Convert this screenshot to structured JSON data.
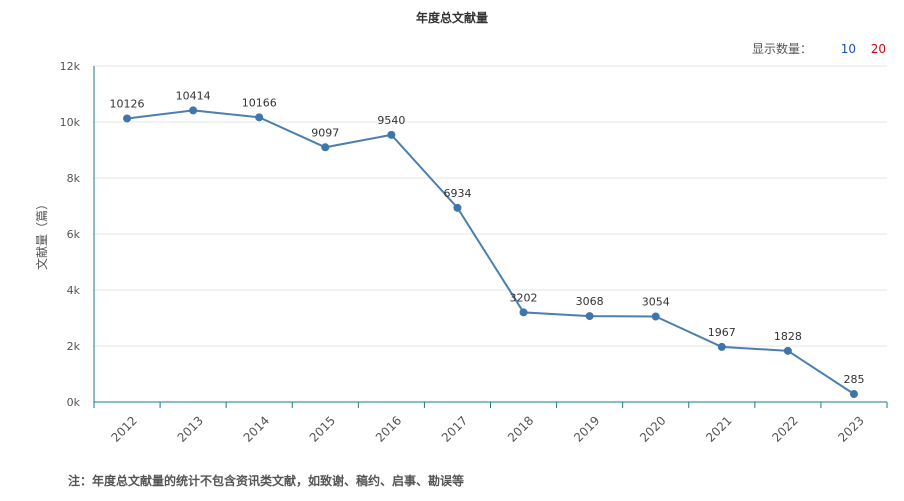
{
  "title": "年度总文献量",
  "count_selector": {
    "label": "显示数量：",
    "options": [
      "10",
      "20"
    ],
    "option_colors": [
      "#1f4fb8",
      "#d0021b"
    ]
  },
  "note": "注：年度总文献量的统计不包含资讯类文献，如致谢、稿约、启事、勘误等",
  "colors": {
    "line": "#4a7fb0",
    "point": "#3e76aa",
    "axis": "#1a7a8a",
    "grid": "#e6e6e6"
  },
  "chart_data": {
    "type": "line",
    "title": "年度总文献量",
    "xlabel": "",
    "ylabel": "文献量（篇）",
    "ylim": [
      0,
      12000
    ],
    "yticks": [
      0,
      2000,
      4000,
      6000,
      8000,
      10000,
      12000
    ],
    "ytick_labels": [
      "0k",
      "2k",
      "4k",
      "6k",
      "8k",
      "10k",
      "12k"
    ],
    "categories": [
      "2012",
      "2013",
      "2014",
      "2015",
      "2016",
      "2017",
      "2018",
      "2019",
      "2020",
      "2021",
      "2022",
      "2023"
    ],
    "values": [
      10126,
      10414,
      10166,
      9097,
      9540,
      6934,
      3202,
      3068,
      3054,
      1967,
      1828,
      285
    ],
    "grid": true,
    "data_labels": true
  }
}
